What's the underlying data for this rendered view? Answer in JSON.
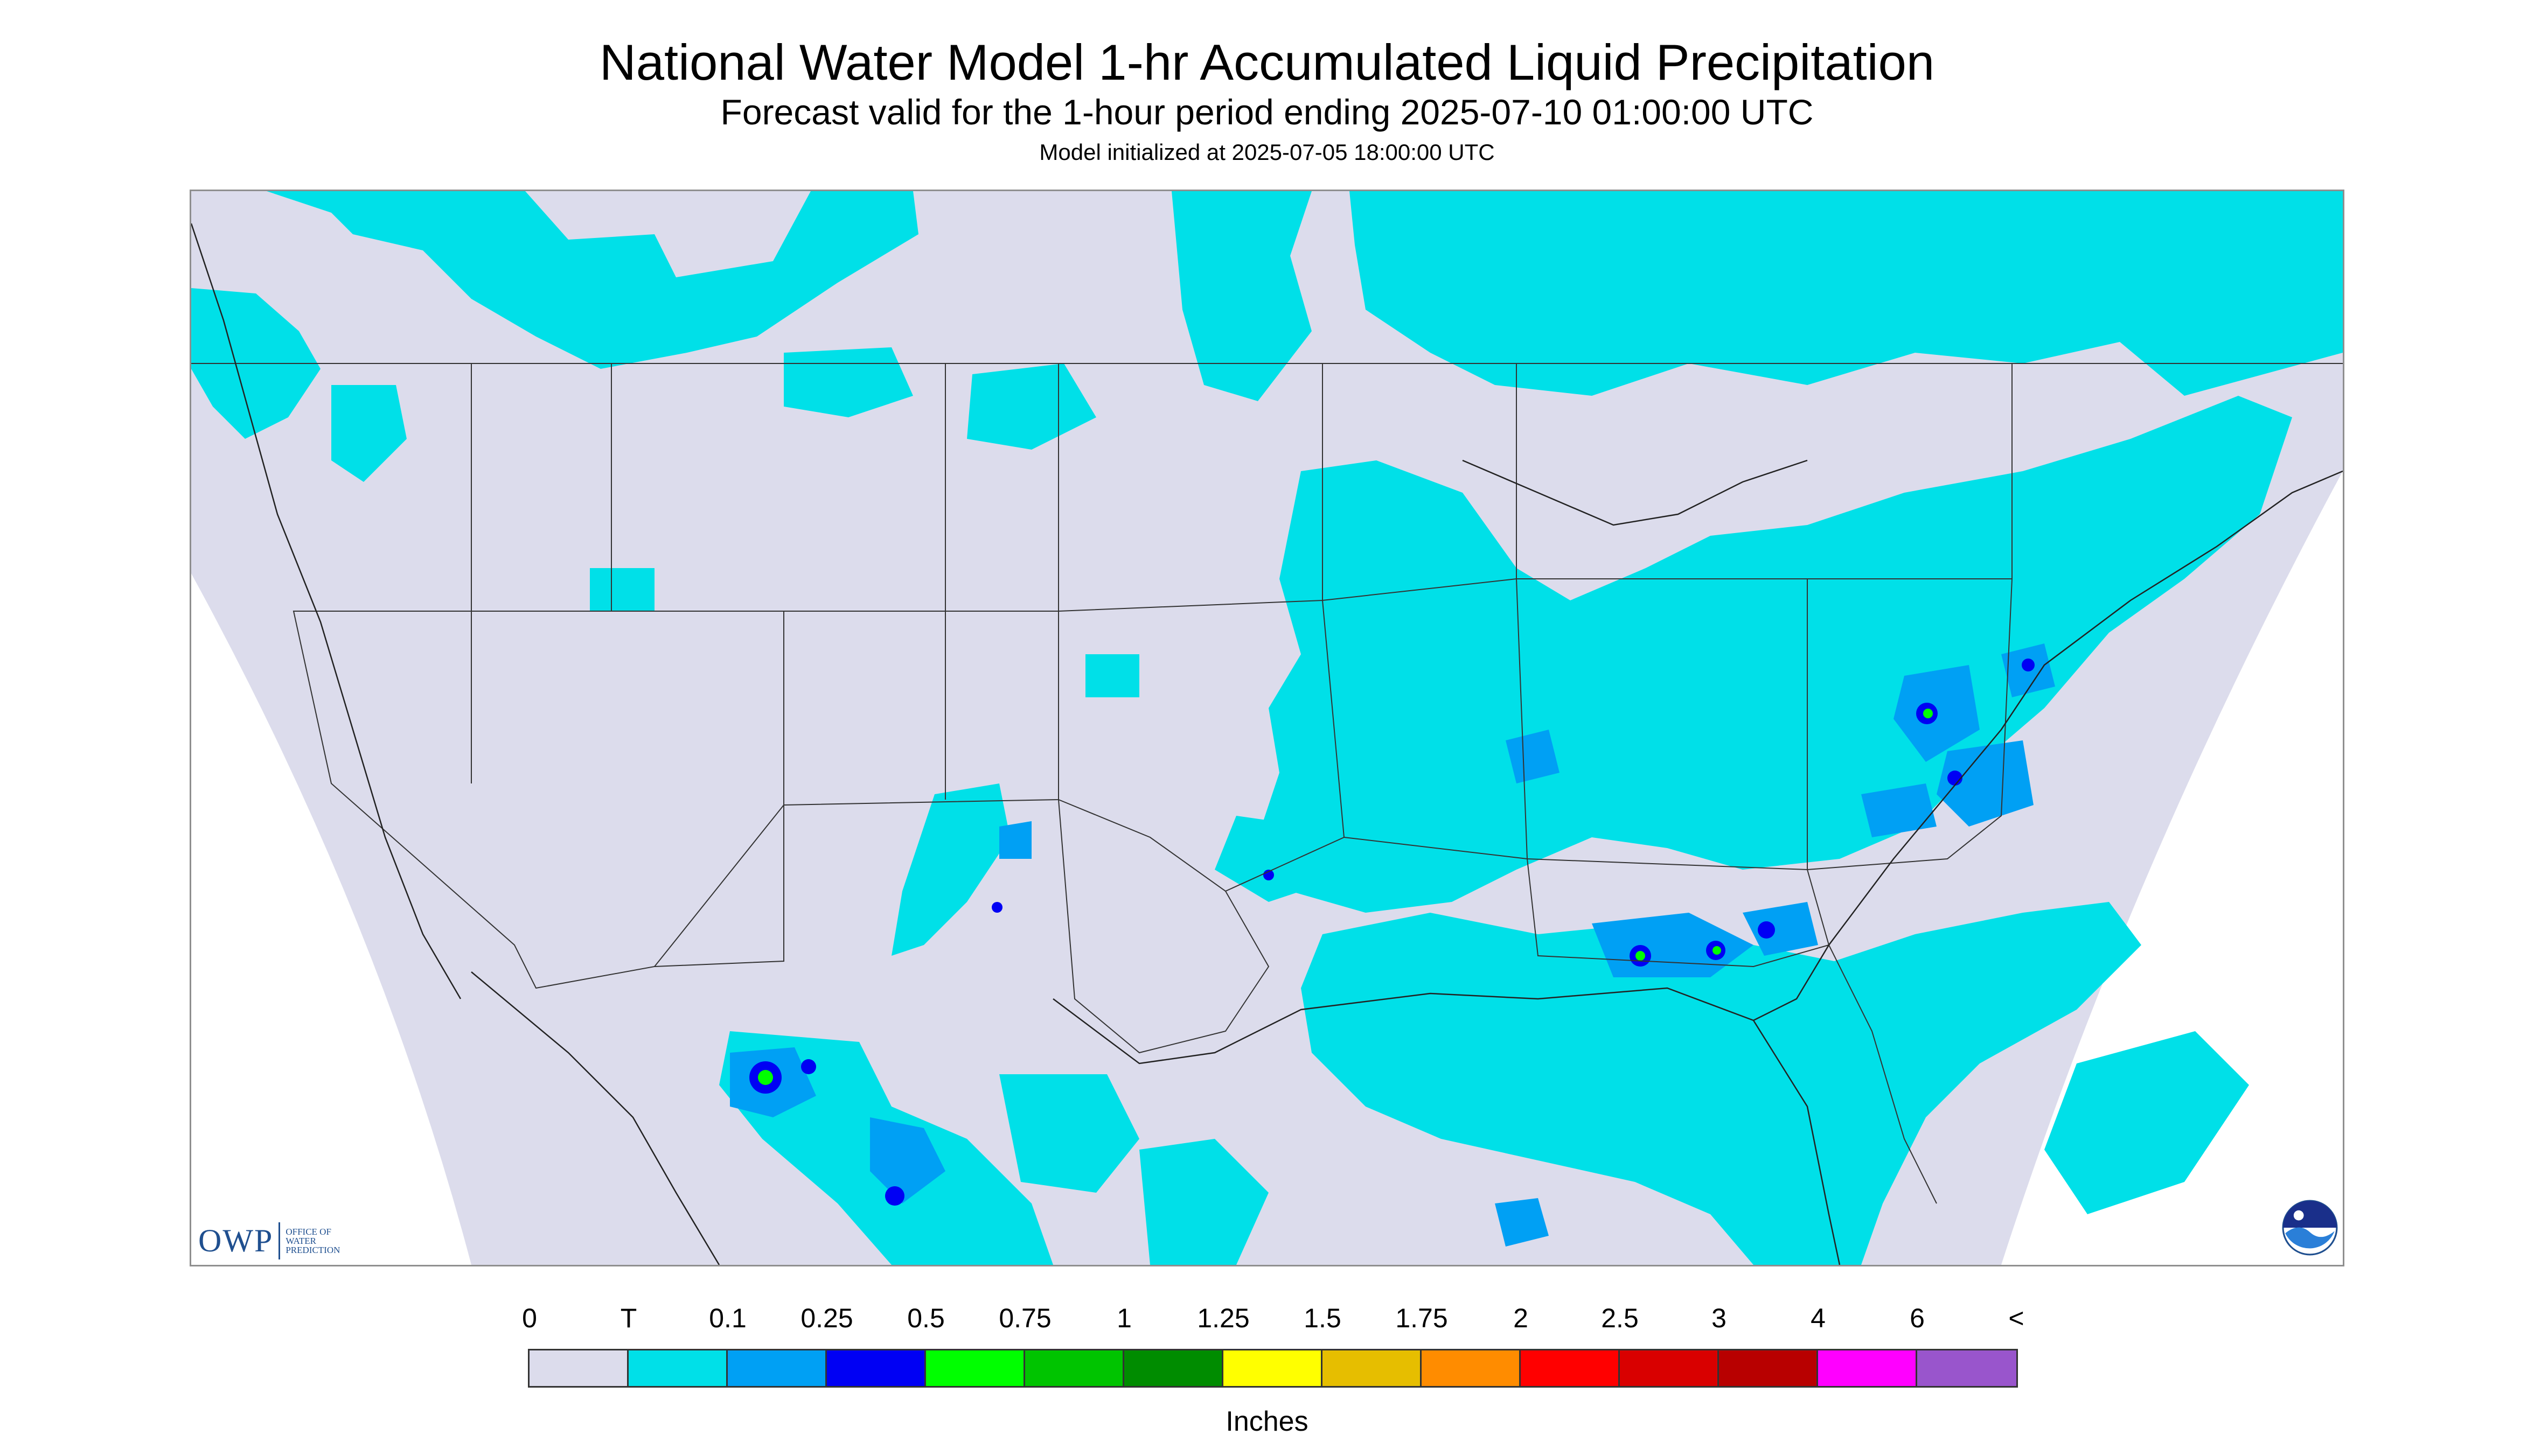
{
  "title": "National Water Model 1-hr Accumulated Liquid Precipitation",
  "subtitle": "Forecast valid for the 1-hour period ending 2025-07-10 01:00:00 UTC",
  "model_init": "Model initialized at 2025-07-05 18:00:00 UTC",
  "logo_owp": {
    "mark": "OWP",
    "text_lines": [
      "OFFICE OF",
      "WATER",
      "PREDICTION"
    ]
  },
  "logo_noaa": "NOAA",
  "legend": {
    "units": "Inches",
    "labels": [
      "0",
      "T",
      "0.1",
      "0.25",
      "0.5",
      "0.75",
      "1",
      "1.25",
      "1.5",
      "1.75",
      "2",
      "2.5",
      "3",
      "4",
      "6",
      "<"
    ],
    "colors": [
      "#dcdcec",
      "#00e0e8",
      "#00a0f4",
      "#0000f4",
      "#00ff00",
      "#00c400",
      "#008c00",
      "#ffff00",
      "#e6be00",
      "#ff8c00",
      "#ff0000",
      "#d90000",
      "#b80000",
      "#ff00ff",
      "#9955cc"
    ]
  },
  "map_colors": {
    "no_data": "#ffffff",
    "background": "#dcdcec",
    "trace": "#00e0e8",
    "light": "#00a0f4",
    "moderate": "#0000f4",
    "heavy": "#00ff00",
    "borders": "#333333"
  }
}
